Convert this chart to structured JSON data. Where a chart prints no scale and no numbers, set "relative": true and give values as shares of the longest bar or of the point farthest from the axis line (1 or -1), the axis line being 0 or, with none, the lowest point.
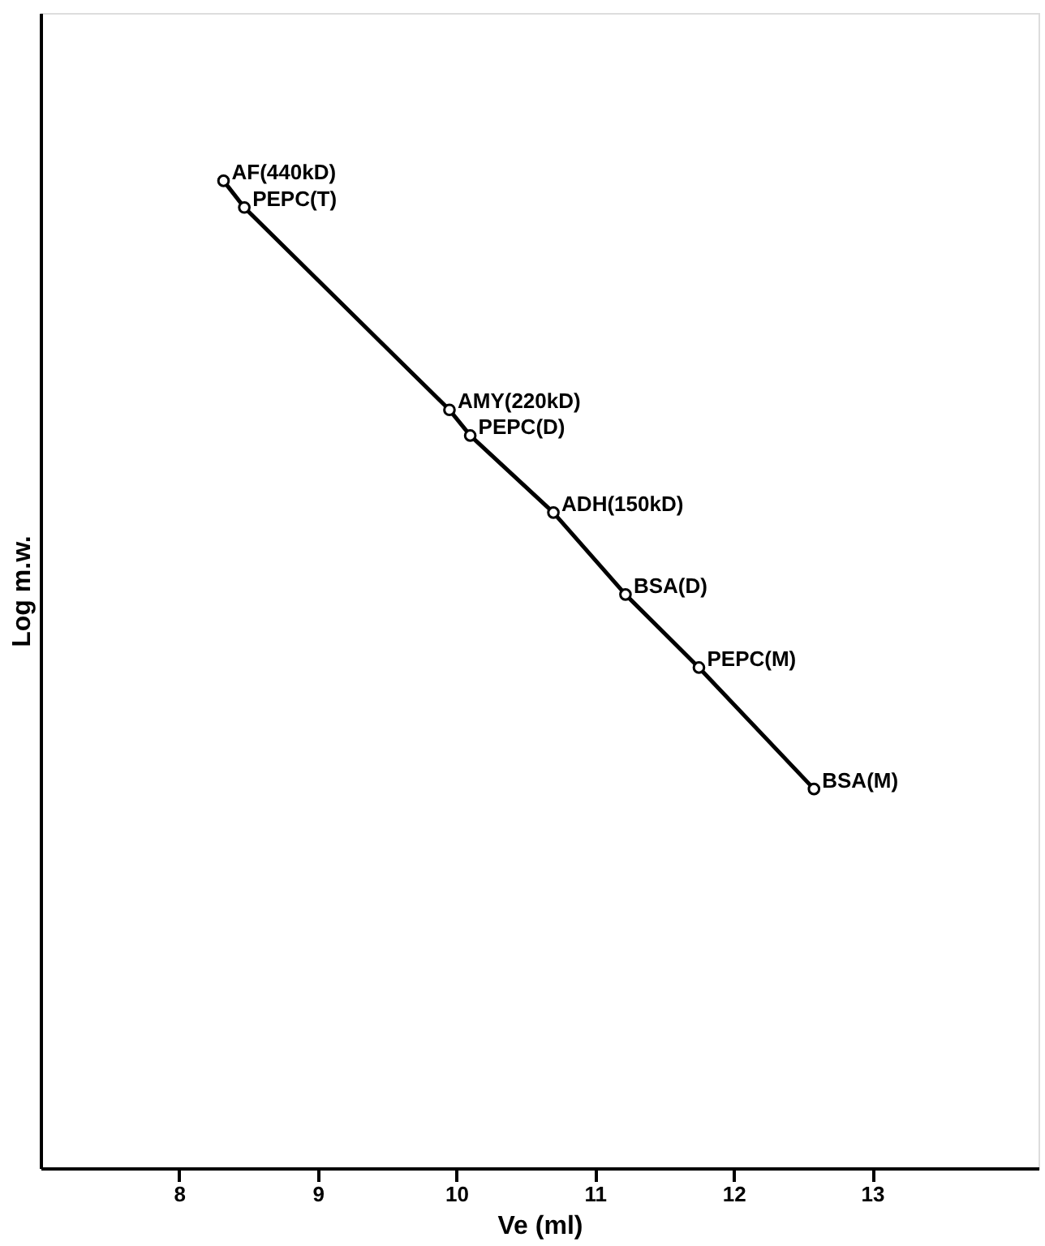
{
  "chart_data": {
    "type": "line",
    "xlabel": "Ve (ml)",
    "ylabel": "Log m.w.",
    "relative": true,
    "tick_labels": "x",
    "x": [
      8.32,
      8.47,
      9.95,
      10.1,
      10.7,
      11.22,
      11.75,
      12.58
    ],
    "series": [
      {
        "color": "#000000",
        "values": [
          1,
          0.973,
          0.768,
          0.742,
          0.664,
          0.581,
          0.507,
          0.384
        ]
      }
    ],
    "xlim": [
      7.0,
      14.2
    ],
    "xticks": [
      8,
      9,
      10,
      11,
      12,
      13
    ],
    "grid": false,
    "marker": "circle",
    "line_style": "solid",
    "annotations": [
      {
        "text": "AF(440kD)",
        "x": 8.32,
        "y": 1
      },
      {
        "text": "PEPC(T)",
        "x": 8.47,
        "y": 0.973
      },
      {
        "text": "AMY(220kD)",
        "x": 9.95,
        "y": 0.768
      },
      {
        "text": "PEPC(D)",
        "x": 10.1,
        "y": 0.742
      },
      {
        "text": "ADH(150kD)",
        "x": 10.7,
        "y": 0.664
      },
      {
        "text": "BSA(D)",
        "x": 11.22,
        "y": 0.581
      },
      {
        "text": "PEPC(M)",
        "x": 11.75,
        "y": 0.507
      },
      {
        "text": "BSA(M)",
        "x": 12.58,
        "y": 0.384
      }
    ]
  }
}
